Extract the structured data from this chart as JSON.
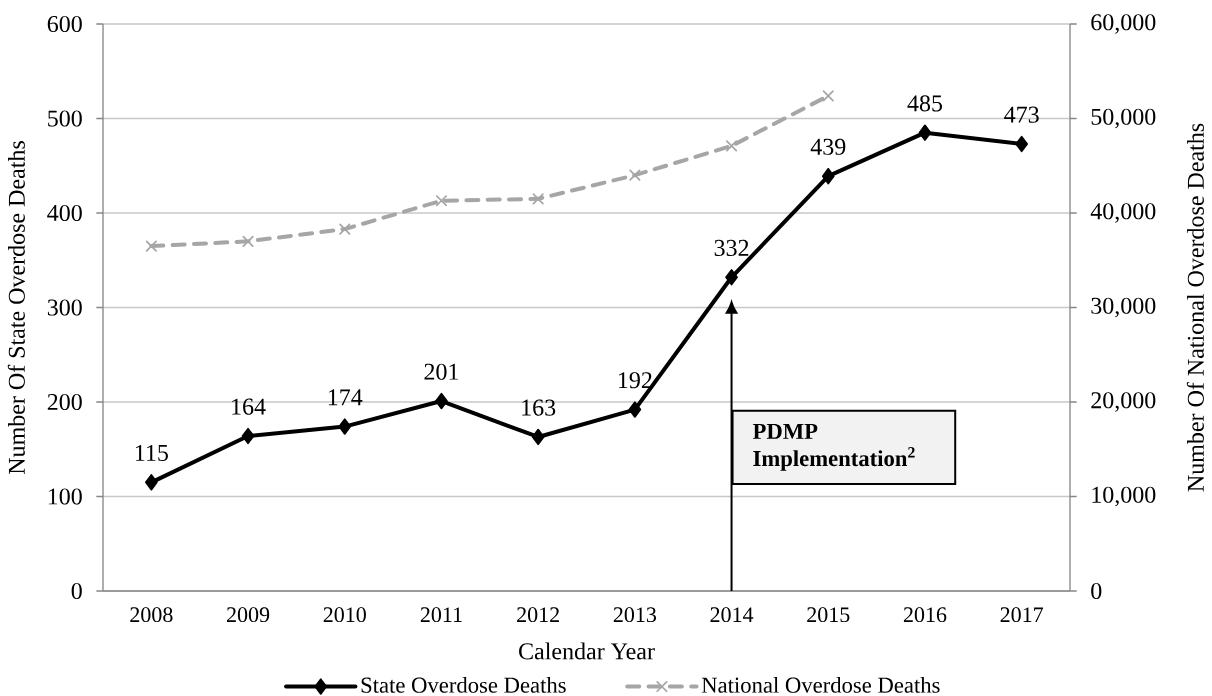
{
  "chart_data": {
    "type": "line",
    "xlabel": "Calendar Year",
    "ylabel": "Number Of State Overdose Deaths",
    "y2label": "Number Of National Overdose Deaths",
    "categories": [
      "2008",
      "2009",
      "2010",
      "2011",
      "2012",
      "2013",
      "2014",
      "2015",
      "2016",
      "2017"
    ],
    "series": [
      {
        "name": "State Overdose Deaths",
        "color": "#000000",
        "values": [
          115,
          164,
          174,
          201,
          163,
          192,
          332,
          439,
          485,
          473
        ],
        "marker": "diamond",
        "line_style": "solid",
        "data_labels": true
      },
      {
        "name": "National Overdose Deaths",
        "color": "#a6a6a6",
        "values": [
          36500,
          37000,
          38300,
          41300,
          41500,
          44000,
          47100,
          52400,
          null,
          null
        ],
        "axis": "y2",
        "marker": "cross",
        "line_style": "dashed"
      }
    ],
    "ylim": [
      0,
      600
    ],
    "yticks": [
      0,
      100,
      200,
      300,
      400,
      500,
      600
    ],
    "y2lim": [
      0,
      60000
    ],
    "y2ticks": [
      0,
      {
        "value": 10000,
        "label": "10,000"
      },
      {
        "value": 20000,
        "label": "20,000"
      },
      {
        "value": 30000,
        "label": "30,000"
      },
      {
        "value": 40000,
        "label": "40,000"
      },
      {
        "value": 50000,
        "label": "50,000"
      },
      {
        "value": 60000,
        "label": "60,000"
      }
    ],
    "grid": "y",
    "legend": "bottom",
    "annotations": [
      "PDMP Implementation$^{2}$"
    ]
  }
}
